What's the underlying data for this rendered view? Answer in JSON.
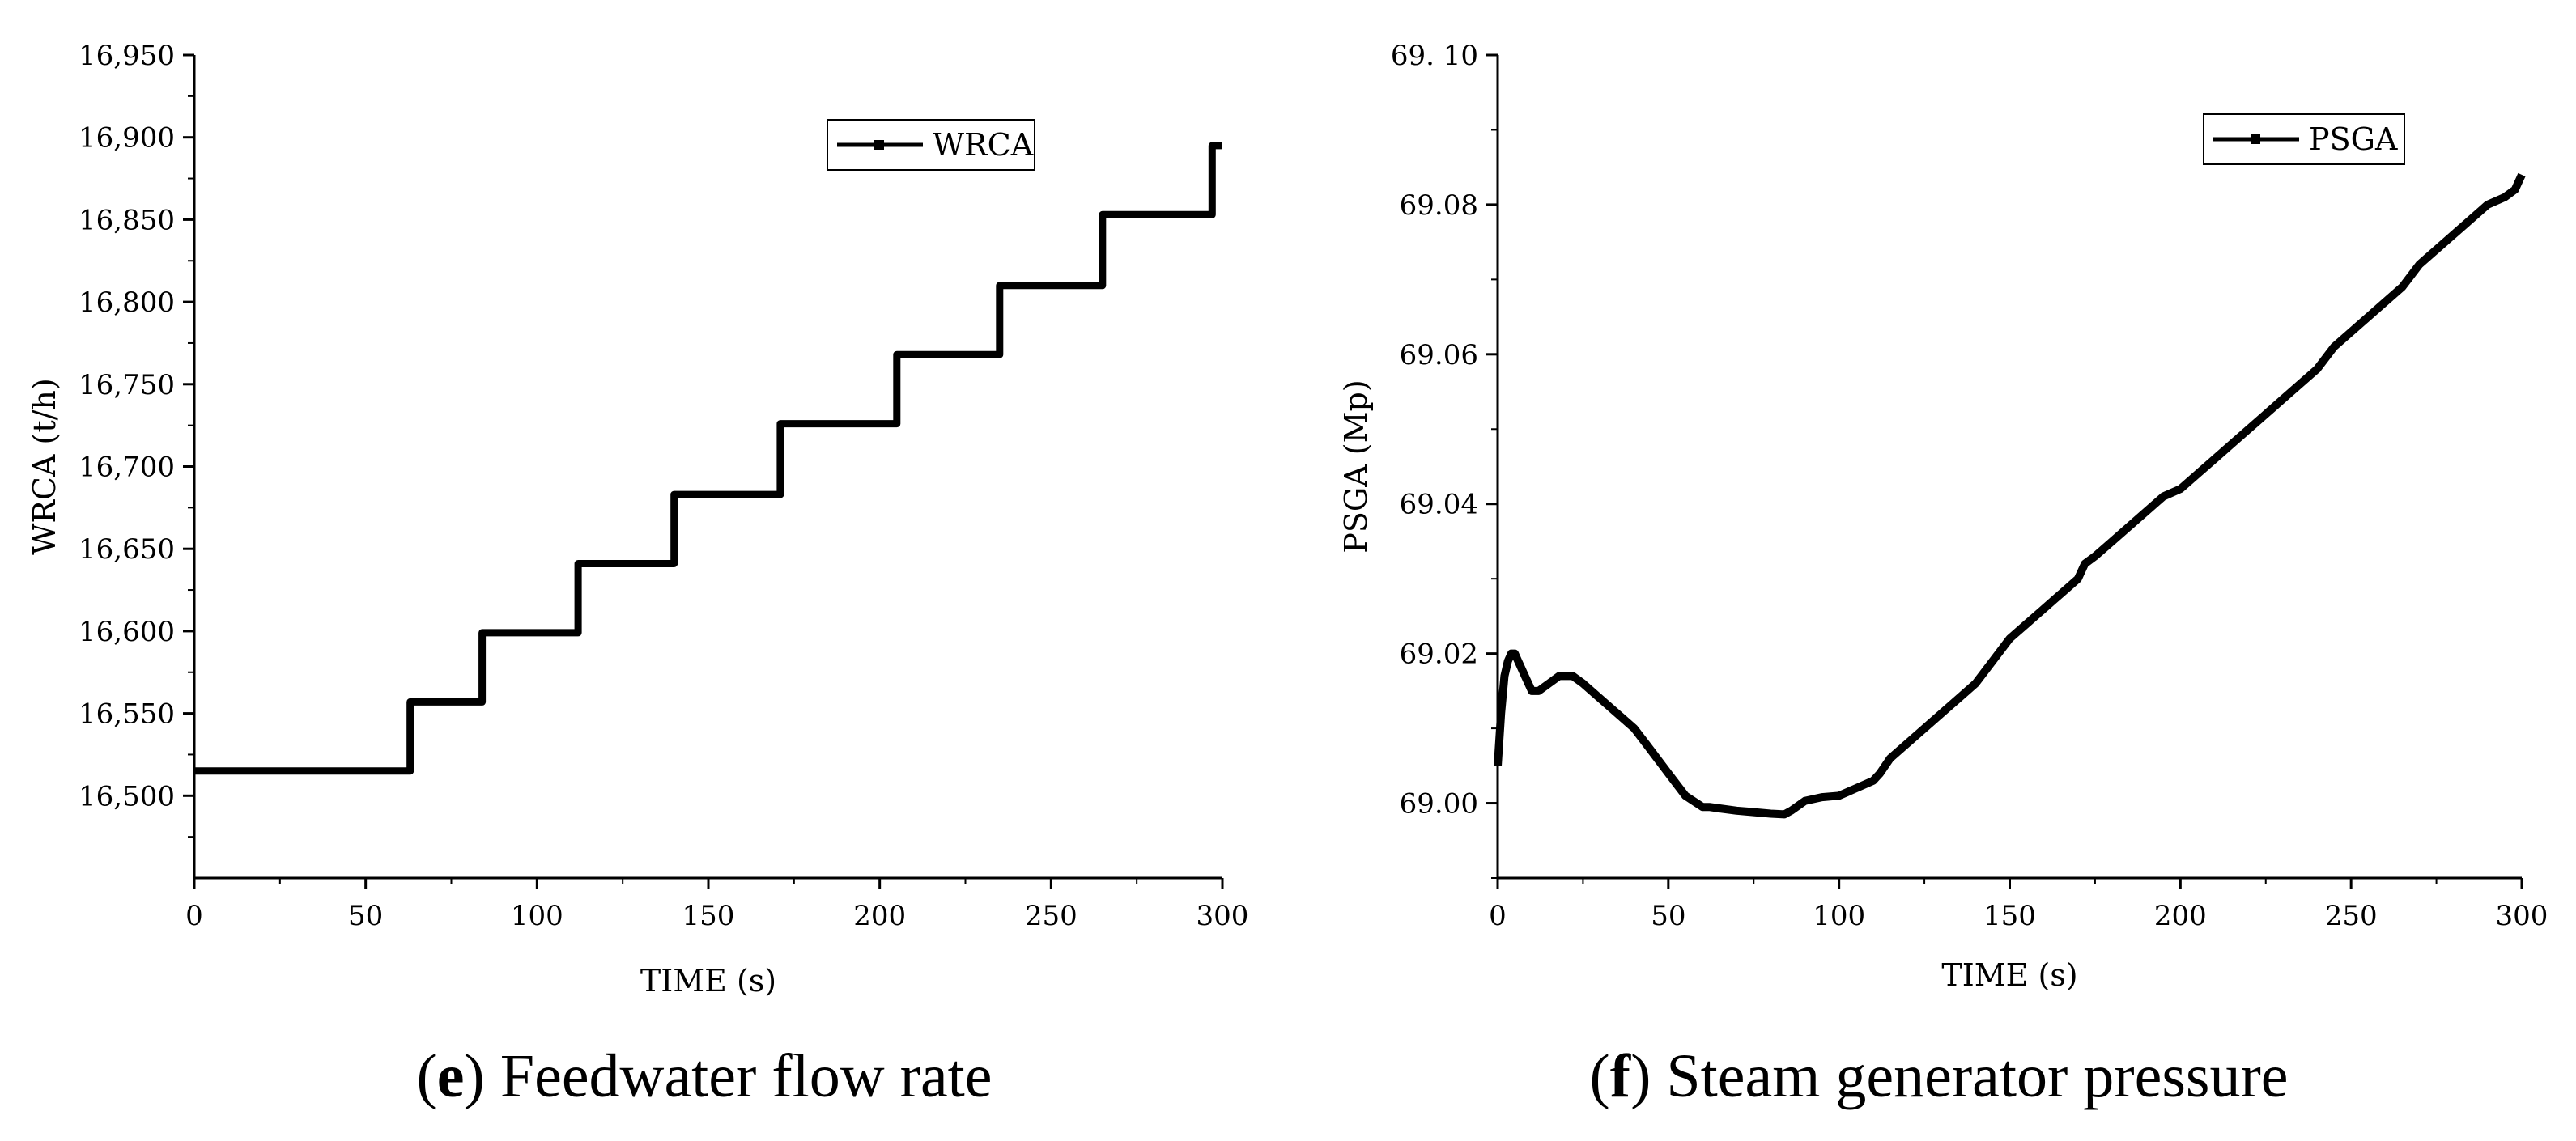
{
  "chart_data": [
    {
      "type": "line",
      "panel_letter": "e",
      "caption": "Feedwater flow rate",
      "xlabel": "TIME (s)",
      "ylabel": "WRCA (t/h)",
      "xlim": [
        0,
        300
      ],
      "ylim": [
        16450,
        16950
      ],
      "xticks": [
        0,
        50,
        100,
        150,
        200,
        250,
        300
      ],
      "xtick_labels": [
        "0",
        "50",
        "100",
        "150",
        "200",
        "250",
        "300"
      ],
      "yticks": [
        16500,
        16550,
        16600,
        16650,
        16700,
        16750,
        16800,
        16850,
        16900,
        16950
      ],
      "ytick_labels": [
        "16,500",
        "16,550",
        "16,600",
        "16,650",
        "16,700",
        "16,750",
        "16,800",
        "16,850",
        "16,900",
        "16,950"
      ],
      "legend": {
        "position": "top-right",
        "entries": [
          "WRCA"
        ]
      },
      "series": [
        {
          "name": "WRCA",
          "step": true,
          "x": [
            0,
            63,
            63,
            84,
            84,
            112,
            112,
            140,
            140,
            171,
            171,
            205,
            205,
            235,
            235,
            265,
            265,
            297,
            297,
            300
          ],
          "y": [
            16515,
            16515,
            16557,
            16557,
            16599,
            16599,
            16641,
            16641,
            16683,
            16683,
            16726,
            16726,
            16768,
            16768,
            16810,
            16810,
            16853,
            16853,
            16895,
            16895
          ]
        }
      ]
    },
    {
      "type": "line",
      "panel_letter": "f",
      "caption": "Steam generator pressure",
      "xlabel": "TIME (s)",
      "ylabel": "PSGA (Mp)",
      "xlim": [
        0,
        300
      ],
      "ylim": [
        68.99,
        69.1
      ],
      "xticks": [
        0,
        50,
        100,
        150,
        200,
        250,
        300
      ],
      "xtick_labels": [
        "0",
        "50",
        "100",
        "150",
        "200",
        "250",
        "300"
      ],
      "yticks": [
        69.0,
        69.02,
        69.04,
        69.06,
        69.08,
        69.1
      ],
      "ytick_labels": [
        "69.00",
        "69.02",
        "69.04",
        "69.06",
        "69.08",
        "69. 10"
      ],
      "legend": {
        "position": "top-right",
        "entries": [
          "PSGA"
        ]
      },
      "series": [
        {
          "name": "PSGA",
          "x": [
            0,
            1,
            2,
            3,
            4,
            5,
            6,
            8,
            10,
            12,
            15,
            18,
            20,
            22,
            25,
            30,
            35,
            40,
            45,
            50,
            55,
            60,
            62,
            65,
            70,
            75,
            80,
            84,
            86,
            90,
            95,
            100,
            105,
            110,
            112,
            115,
            120,
            125,
            130,
            135,
            140,
            145,
            150,
            155,
            160,
            165,
            170,
            172,
            175,
            180,
            185,
            190,
            195,
            200,
            205,
            210,
            215,
            220,
            225,
            230,
            235,
            240,
            245,
            250,
            255,
            260,
            265,
            270,
            275,
            280,
            285,
            290,
            295,
            298,
            300
          ],
          "y": [
            69.005,
            69.012,
            69.017,
            69.019,
            69.02,
            69.02,
            69.019,
            69.017,
            69.015,
            69.015,
            69.016,
            69.017,
            69.017,
            69.017,
            69.016,
            69.014,
            69.012,
            69.01,
            69.007,
            69.004,
            69.001,
            68.9995,
            68.9995,
            68.9993,
            68.999,
            68.9988,
            68.9986,
            68.9985,
            68.999,
            69.0003,
            69.0008,
            69.001,
            69.002,
            69.003,
            69.004,
            69.006,
            69.008,
            69.01,
            69.012,
            69.014,
            69.016,
            69.019,
            69.022,
            69.024,
            69.026,
            69.028,
            69.03,
            69.032,
            69.033,
            69.035,
            69.037,
            69.039,
            69.041,
            69.042,
            69.044,
            69.046,
            69.048,
            69.05,
            69.052,
            69.054,
            69.056,
            69.058,
            69.061,
            69.063,
            69.065,
            69.067,
            69.069,
            69.072,
            69.074,
            69.076,
            69.078,
            69.08,
            69.081,
            69.082,
            69.084
          ]
        }
      ]
    }
  ]
}
